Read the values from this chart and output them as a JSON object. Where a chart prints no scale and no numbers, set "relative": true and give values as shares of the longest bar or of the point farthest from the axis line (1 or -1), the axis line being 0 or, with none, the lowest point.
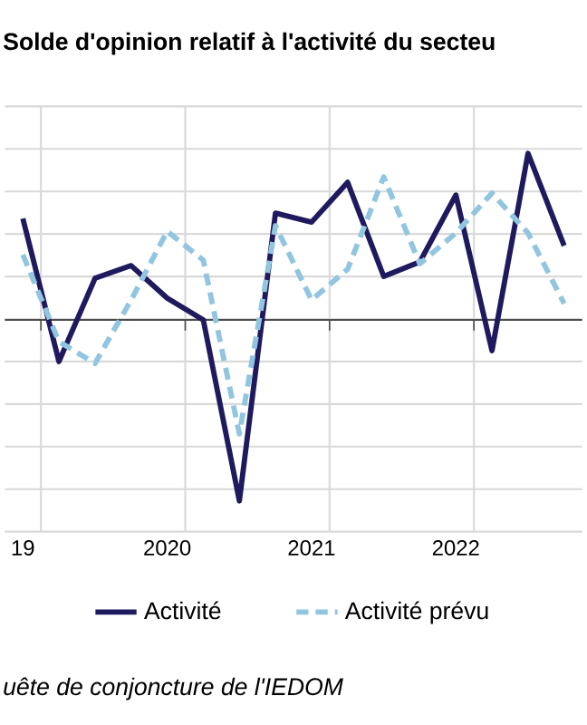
{
  "chart_data": {
    "type": "line",
    "title": "Solde d'opinion relatif à l'activité du secteu",
    "relative": true,
    "grid": true,
    "legend": "bottom",
    "categories": [
      "19",
      null,
      null,
      null,
      "2020",
      null,
      null,
      null,
      "2021",
      null,
      null,
      null,
      "2022",
      null,
      null,
      null
    ],
    "series": [
      {
        "name": "Activité",
        "color": "#1f1a5e",
        "line_style": "solid",
        "values": [
          0.56,
          -0.23,
          0.23,
          0.3,
          0.12,
          0,
          -1,
          0.59,
          0.54,
          0.76,
          0.24,
          0.32,
          0.69,
          -0.17,
          0.92,
          0.41
        ]
      },
      {
        "name": "Activité prévu",
        "color": "#92c5e0",
        "line_style": "dashed",
        "values": [
          0.36,
          -0.12,
          -0.24,
          0.11,
          0.49,
          0.33,
          -0.63,
          0.52,
          0.11,
          0.28,
          0.79,
          0.31,
          0.48,
          0.7,
          0.48,
          0.09
        ]
      }
    ],
    "annotations": [
      "*uête de conjoncture de l'IEDOM*"
    ]
  }
}
